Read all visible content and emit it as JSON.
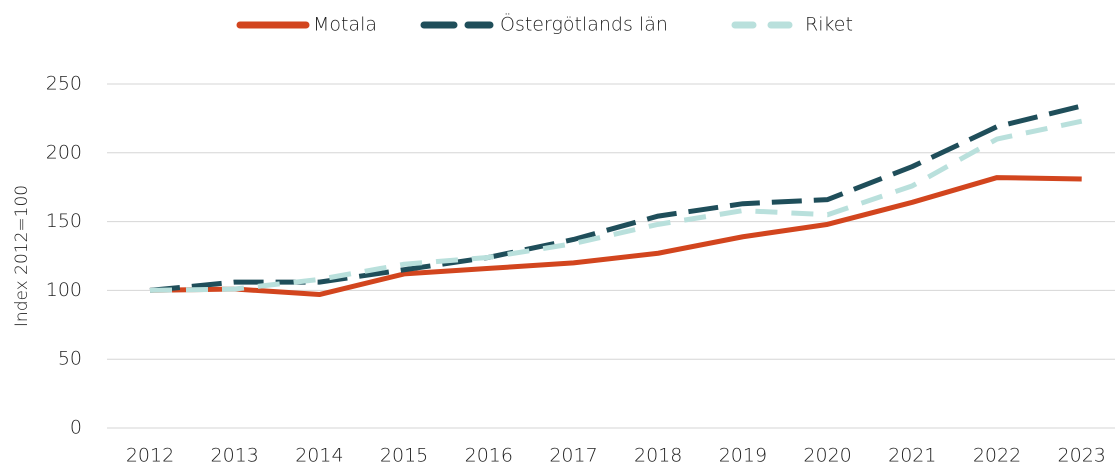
{
  "chart_data": {
    "type": "line",
    "y_label": "Index 2012=100",
    "categories": [
      "2012",
      "2013",
      "2014",
      "2015",
      "2016",
      "2017",
      "2018",
      "2019",
      "2020",
      "2021",
      "2022",
      "2023"
    ],
    "series": [
      {
        "name": "Motala",
        "color": "#d2451e",
        "line_style": "solid",
        "values": [
          100,
          101,
          97,
          112,
          116,
          120,
          127,
          139,
          148,
          164,
          182,
          181
        ]
      },
      {
        "name": "Östergötlands län",
        "color": "#1f4e5a",
        "line_style": "dashed",
        "values": [
          100,
          106,
          106,
          115,
          124,
          137,
          154,
          163,
          166,
          190,
          219,
          234
        ]
      },
      {
        "name": "Riket",
        "color": "#b9e0dc",
        "line_style": "dashed",
        "values": [
          100,
          101,
          108,
          119,
          124,
          134,
          148,
          158,
          155,
          176,
          210,
          223
        ]
      }
    ],
    "ylim": [
      0,
      250
    ],
    "yticks": [
      0,
      50,
      100,
      150,
      200,
      250
    ],
    "grid": true,
    "legend": "top"
  }
}
